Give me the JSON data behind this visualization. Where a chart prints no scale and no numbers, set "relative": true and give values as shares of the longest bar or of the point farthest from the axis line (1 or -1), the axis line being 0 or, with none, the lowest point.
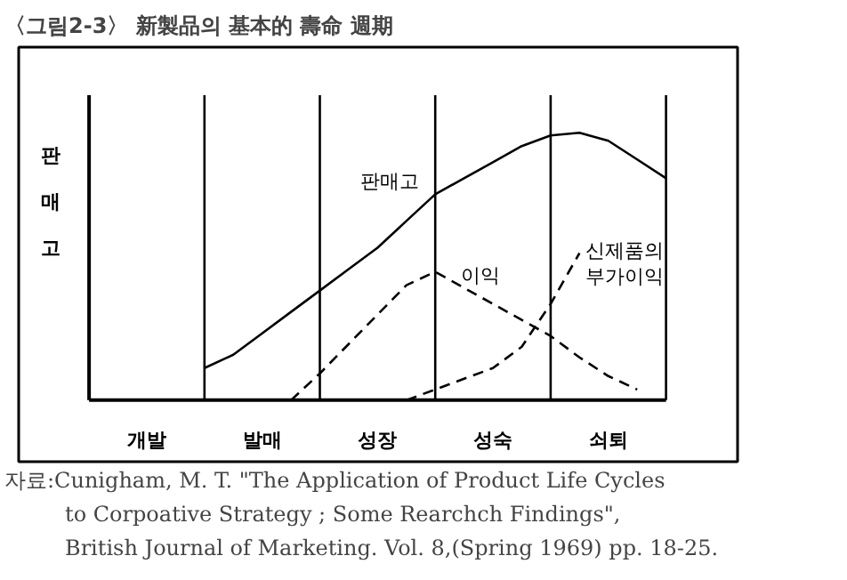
{
  "chart_data": {
    "type": "line",
    "title": "〈그림2-3〉 新製品의 基本的 壽命 週期",
    "ylabel": "판매고",
    "relative": true,
    "categories": [
      null,
      null,
      "개발",
      null,
      null,
      null,
      "발매",
      null,
      null,
      null,
      "성장",
      null,
      null,
      null,
      "성숙",
      null,
      null,
      null,
      "쇠퇴",
      null,
      null
    ],
    "series": [
      {
        "name": "판매고",
        "color": "#000000",
        "line_style": "solid",
        "values": [
          null,
          null,
          null,
          null,
          0.12,
          0.17,
          0.25,
          0.33,
          0.41,
          0.49,
          0.57,
          0.67,
          0.77,
          0.83,
          0.89,
          0.95,
          0.99,
          1.0,
          0.97,
          0.9,
          0.83
        ]
      },
      {
        "name": "이익",
        "color": "#000000",
        "line_style": "dashed",
        "values": [
          null,
          null,
          null,
          null,
          null,
          null,
          null,
          0.0,
          0.1,
          0.21,
          0.32,
          0.43,
          0.48,
          0.42,
          0.36,
          0.3,
          0.24,
          0.16,
          0.09,
          0.04,
          null
        ]
      },
      {
        "name": "신제품의\n부가이익",
        "color": "#000000",
        "line_style": "dashed",
        "values": [
          null,
          null,
          null,
          null,
          null,
          null,
          null,
          null,
          null,
          null,
          null,
          0.0,
          0.04,
          0.08,
          0.12,
          0.2,
          0.36,
          0.55,
          null,
          null,
          null
        ]
      }
    ],
    "legend": false,
    "grid": "x",
    "annotations": [
      "자료:Cunigham, M. T. \"The Application of Product Life Cycles\nto Corpoative Strategy ; Some Rearchch Findings\",\nBritish Journal of Marketing. Vol. 8,(Spring 1969) pp. 18-25."
    ]
  }
}
